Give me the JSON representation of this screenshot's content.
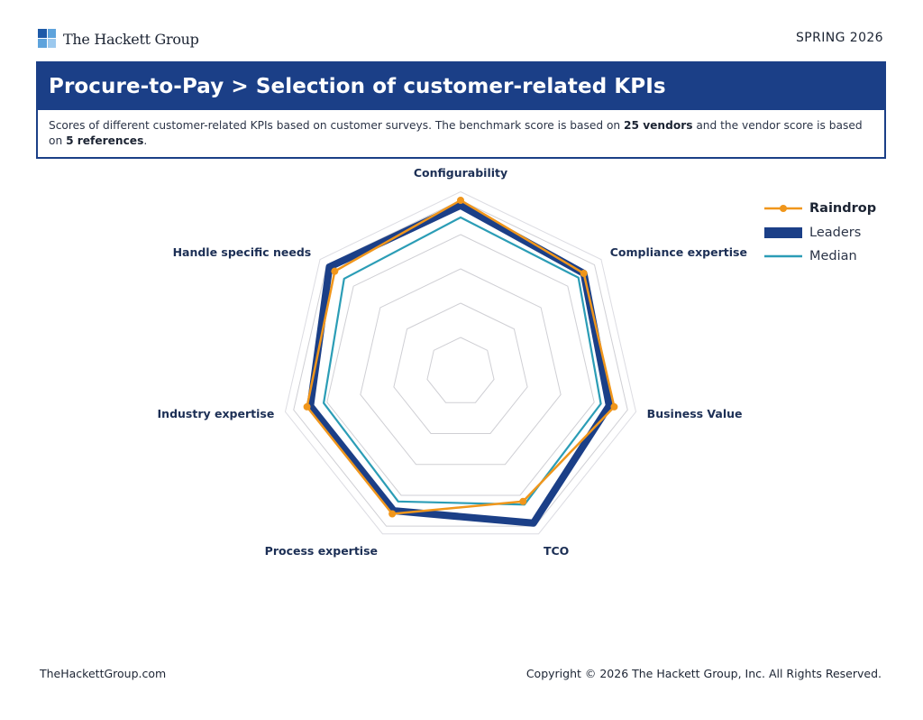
{
  "header": {
    "brand": "The Hackett Group",
    "edition": "SPRING 2026"
  },
  "title": {
    "heading": "Procure-to-Pay > Selection of customer-related KPIs",
    "desc_1": "Scores of different customer-related KPIs based on customer surveys. The benchmark score is based on ",
    "desc_vendors": "25 vendors",
    "desc_2": " and the vendor score is based on ",
    "desc_refs": "5 references",
    "desc_3": "."
  },
  "colors": {
    "brand_blue": "#1b3f87",
    "raindrop": "#f0961b",
    "leaders": "#1b3f87",
    "median": "#2b9db6",
    "grid": "#cfcfd4"
  },
  "chart_data": {
    "type": "radar",
    "axes": [
      "Configurability",
      "Compliance expertise",
      "Business Value",
      "TCO",
      "Process expertise",
      "Industry expertise",
      "Handle specific needs"
    ],
    "max": 5,
    "grid_rings": 5,
    "series": [
      {
        "name": "Raindrop",
        "style": "line-markers",
        "values": [
          5.0,
          4.6,
          4.6,
          4.2,
          4.6,
          4.6,
          4.7
        ]
      },
      {
        "name": "Leaders",
        "style": "thick-line",
        "values": [
          4.85,
          4.6,
          4.45,
          4.9,
          4.5,
          4.5,
          4.9
        ]
      },
      {
        "name": "Median",
        "style": "line",
        "values": [
          4.5,
          4.4,
          4.2,
          4.3,
          4.2,
          4.1,
          4.35
        ]
      }
    ]
  },
  "footer": {
    "website": "TheHackettGroup.com",
    "copyright": "Copyright © 2026 The Hackett Group, Inc. All Rights Reserved."
  }
}
